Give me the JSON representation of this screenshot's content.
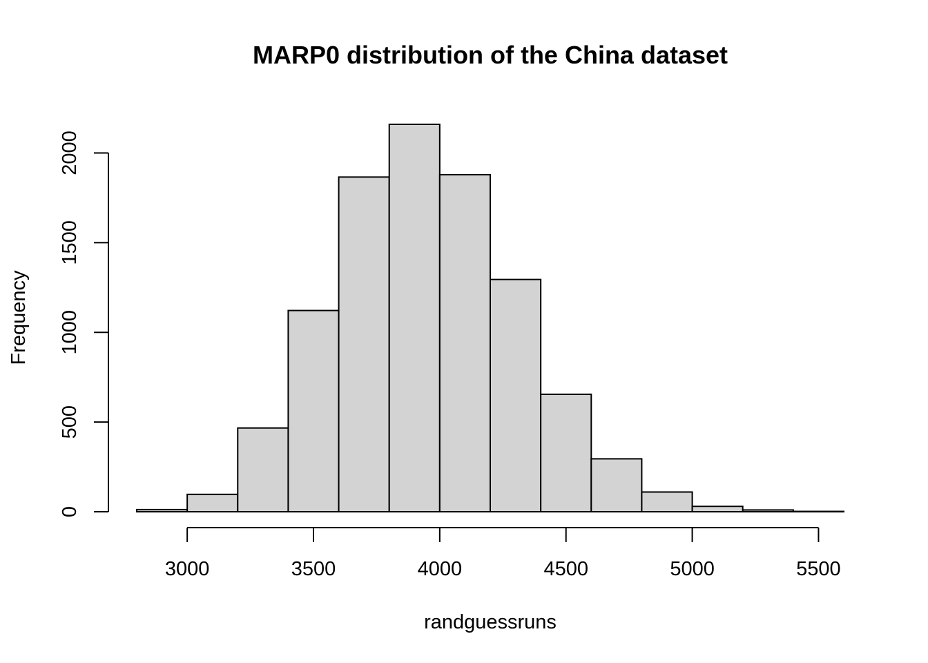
{
  "chart_data": {
    "type": "bar",
    "title": "MARP0 distribution of the China dataset",
    "xlabel": "randguessruns",
    "ylabel": "Frequency",
    "bins": [
      {
        "start": 2800,
        "end": 3000,
        "count": 12
      },
      {
        "start": 3000,
        "end": 3200,
        "count": 97
      },
      {
        "start": 3200,
        "end": 3400,
        "count": 467
      },
      {
        "start": 3400,
        "end": 3600,
        "count": 1122
      },
      {
        "start": 3600,
        "end": 3800,
        "count": 1866
      },
      {
        "start": 3800,
        "end": 4000,
        "count": 2160
      },
      {
        "start": 4000,
        "end": 4200,
        "count": 1879
      },
      {
        "start": 4200,
        "end": 4400,
        "count": 1295
      },
      {
        "start": 4400,
        "end": 4600,
        "count": 655
      },
      {
        "start": 4600,
        "end": 4800,
        "count": 295
      },
      {
        "start": 4800,
        "end": 5000,
        "count": 110
      },
      {
        "start": 5000,
        "end": 5200,
        "count": 30
      },
      {
        "start": 5200,
        "end": 5400,
        "count": 10
      },
      {
        "start": 5400,
        "end": 5600,
        "count": 2
      }
    ],
    "x_ticks": [
      "3000",
      "3500",
      "4000",
      "4500",
      "5000",
      "5500"
    ],
    "y_ticks": [
      "0",
      "500",
      "1000",
      "1500",
      "2000"
    ],
    "xlim": [
      2800,
      5600
    ],
    "ylim": [
      0,
      2160
    ],
    "bar_color": "#d3d3d3",
    "grid": false,
    "legend": "none"
  }
}
